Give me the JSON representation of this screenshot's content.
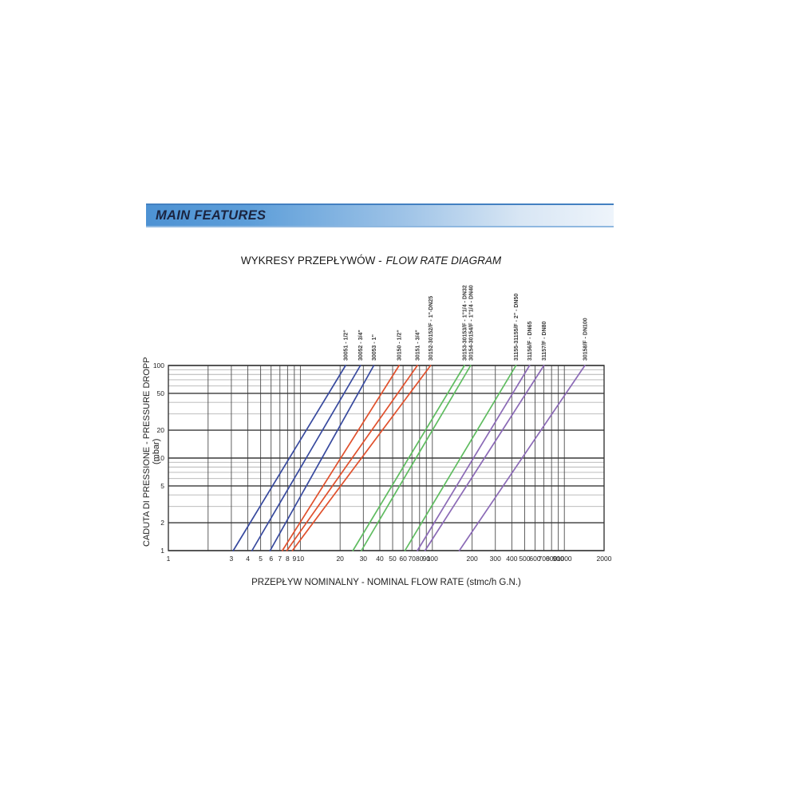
{
  "header": {
    "title": "MAIN FEATURES"
  },
  "chart_title": {
    "part1": "WYKRESY PRZEPŁYWÓW -",
    "part2": "FLOW RATE DIAGRAM"
  },
  "chart_data": {
    "type": "line",
    "title": "WYKRESY PRZEPŁYWÓW - FLOW RATE DIAGRAM",
    "xlabel": "PRZEPŁYW NOMINALNY - NOMINAL FLOW RATE (stmc/h G.N.)",
    "ylabel": "CADUTA DI PRESSIONE - PRESSURE DROPP (mbar)",
    "x_scale": "log",
    "y_scale": "log",
    "xlim": [
      1,
      2000
    ],
    "ylim": [
      1,
      100
    ],
    "grid": true,
    "x_tick_labels": [
      1,
      3,
      4,
      5,
      6,
      7,
      8,
      9,
      10,
      20,
      30,
      40,
      50,
      60,
      70,
      80,
      90,
      100,
      200,
      300,
      400,
      500,
      600,
      700,
      800,
      900,
      1000,
      2000
    ],
    "x_gridlines": [
      1,
      2,
      3,
      4,
      5,
      6,
      7,
      8,
      9,
      10,
      20,
      30,
      40,
      50,
      60,
      70,
      80,
      90,
      100,
      200,
      300,
      400,
      500,
      600,
      700,
      800,
      900,
      1000,
      2000
    ],
    "y_tick_labels": [
      1,
      2,
      5,
      10,
      20,
      50,
      100
    ],
    "y_major_gridlines": [
      1,
      2,
      5,
      10,
      20,
      50,
      100
    ],
    "y_minor_gridlines": [
      3,
      4,
      6,
      7,
      8,
      9,
      30,
      40,
      60,
      70,
      80,
      90
    ],
    "legend_position": "rotated-labels-above-plot",
    "series": [
      {
        "id": "30051",
        "label": "30051 - 1/2\"",
        "color": "#37499e",
        "x": [
          3.1,
          22
        ],
        "y": [
          1,
          100
        ]
      },
      {
        "id": "30052",
        "label": "30052 - 3/4\"",
        "color": "#37499e",
        "x": [
          4.3,
          28.5
        ],
        "y": [
          1,
          100
        ]
      },
      {
        "id": "30053",
        "label": "30053 - 1\"",
        "color": "#37499e",
        "x": [
          5.9,
          36
        ],
        "y": [
          1,
          100
        ]
      },
      {
        "id": "30150",
        "label": "30150 - 1/2\"",
        "color": "#e0502c",
        "x": [
          7.3,
          56
        ],
        "y": [
          1,
          100
        ]
      },
      {
        "id": "30151",
        "label": "30151 - 3/4\"",
        "color": "#e0502c",
        "x": [
          7.9,
          77
        ],
        "y": [
          1,
          100
        ]
      },
      {
        "id": "30152",
        "label": "30152-30152/F - 1\"-DN25",
        "color": "#e0502c",
        "x": [
          8.7,
          97
        ],
        "y": [
          1,
          100
        ]
      },
      {
        "id": "30153",
        "label": "30153-30153/F - 1\"1/4 - DN32",
        "color": "#5fbc60",
        "x": [
          25,
          175
        ],
        "y": [
          1,
          100
        ]
      },
      {
        "id": "30154",
        "label": "30154-30154/F - 1\"1/4 - DN40",
        "color": "#5fbc60",
        "x": [
          29,
          195
        ],
        "y": [
          1,
          100
        ]
      },
      {
        "id": "31155",
        "label": "31155-31155/F - 2\" - DN50",
        "color": "#5fbc60",
        "x": [
          62,
          430
        ],
        "y": [
          1,
          100
        ]
      },
      {
        "id": "31156",
        "label": "31156/F - DN65",
        "color": "#8b6ab6",
        "x": [
          77,
          545
        ],
        "y": [
          1,
          100
        ]
      },
      {
        "id": "31157",
        "label": "31157/F - DN80",
        "color": "#8b6ab6",
        "x": [
          88,
          700
        ],
        "y": [
          1,
          100
        ]
      },
      {
        "id": "30158",
        "label": "30158/F - DN100",
        "color": "#8b6ab6",
        "x": [
          160,
          1430
        ],
        "y": [
          1,
          100
        ]
      }
    ]
  }
}
